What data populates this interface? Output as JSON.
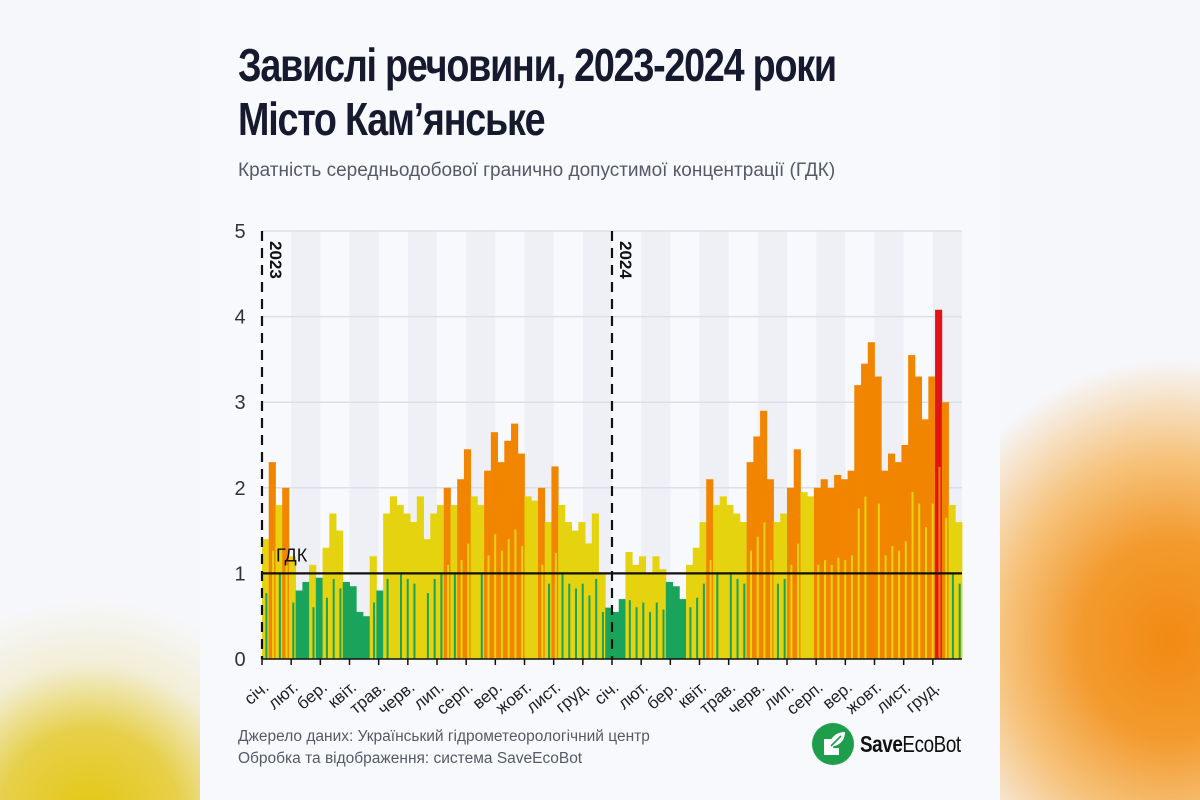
{
  "header": {
    "title_line1": "Завислі речовини, 2023-2024 роки",
    "title_line2": "Місто Кам’янське",
    "subtitle": "Кратність середньодобової гранично допустимої концентрації (ГДК)"
  },
  "footer": {
    "source": "Джерело даних: Український гідрометеорологічний центр",
    "processing": "Обробка та відображення: система SaveEcoBot",
    "logo_bold": "Save",
    "logo_rest": "EcoBot"
  },
  "colors": {
    "below_limit": "#1aa35a",
    "limit_1_2": "#e6d30f",
    "limit_2_4": "#f28500",
    "above_4": "#e31414",
    "month_shade": "#eef0f6"
  },
  "chart_data": {
    "type": "bar",
    "title": "Завислі речовини, 2023-2024 роки",
    "ylabel": "Кратність ГДК",
    "ylim": [
      0,
      5
    ],
    "yticks": [
      0,
      1,
      2,
      3,
      4,
      5
    ],
    "reference_line": {
      "value": 1,
      "label": "ГДК"
    },
    "year_markers": [
      {
        "label": "2023",
        "x": 0
      },
      {
        "label": "2024",
        "x": 52
      }
    ],
    "month_labels": [
      "січ.",
      "лют.",
      "бер.",
      "квіт.",
      "трав.",
      "черв.",
      "лип.",
      "серп.",
      "вер.",
      "жовт.",
      "лист.",
      "груд.",
      "січ.",
      "лют.",
      "бер.",
      "квіт.",
      "трав.",
      "черв.",
      "лип.",
      "серп.",
      "вер.",
      "жовт.",
      "лист.",
      "груд."
    ],
    "x_unit": "week index (0-103), 2023-2024",
    "values": [
      1.4,
      2.3,
      1.8,
      2.0,
      1.2,
      0.8,
      0.9,
      1.1,
      0.95,
      1.3,
      1.7,
      1.5,
      0.9,
      0.85,
      0.55,
      0.5,
      1.2,
      0.8,
      1.7,
      1.9,
      1.8,
      1.7,
      1.6,
      1.9,
      1.4,
      1.7,
      1.8,
      2.0,
      1.8,
      2.1,
      2.45,
      1.9,
      1.8,
      2.2,
      2.65,
      2.3,
      2.55,
      2.75,
      2.4,
      1.9,
      1.85,
      2.0,
      1.6,
      2.25,
      1.8,
      1.6,
      1.5,
      1.6,
      1.35,
      1.7,
      1.0,
      0.6,
      0.55,
      0.7,
      1.25,
      1.1,
      1.2,
      1.0,
      1.2,
      1.05,
      0.9,
      0.85,
      0.7,
      1.1,
      1.3,
      1.6,
      2.1,
      1.8,
      1.9,
      1.8,
      1.7,
      1.6,
      2.3,
      2.6,
      2.9,
      2.1,
      1.6,
      1.7,
      2.0,
      2.45,
      1.95,
      1.9,
      2.0,
      2.1,
      2.0,
      2.15,
      2.1,
      2.2,
      3.2,
      3.45,
      3.7,
      3.3,
      2.2,
      2.4,
      2.3,
      2.5,
      3.55,
      3.3,
      2.8,
      3.3,
      4.08,
      3.0,
      1.8,
      1.6
    ]
  }
}
